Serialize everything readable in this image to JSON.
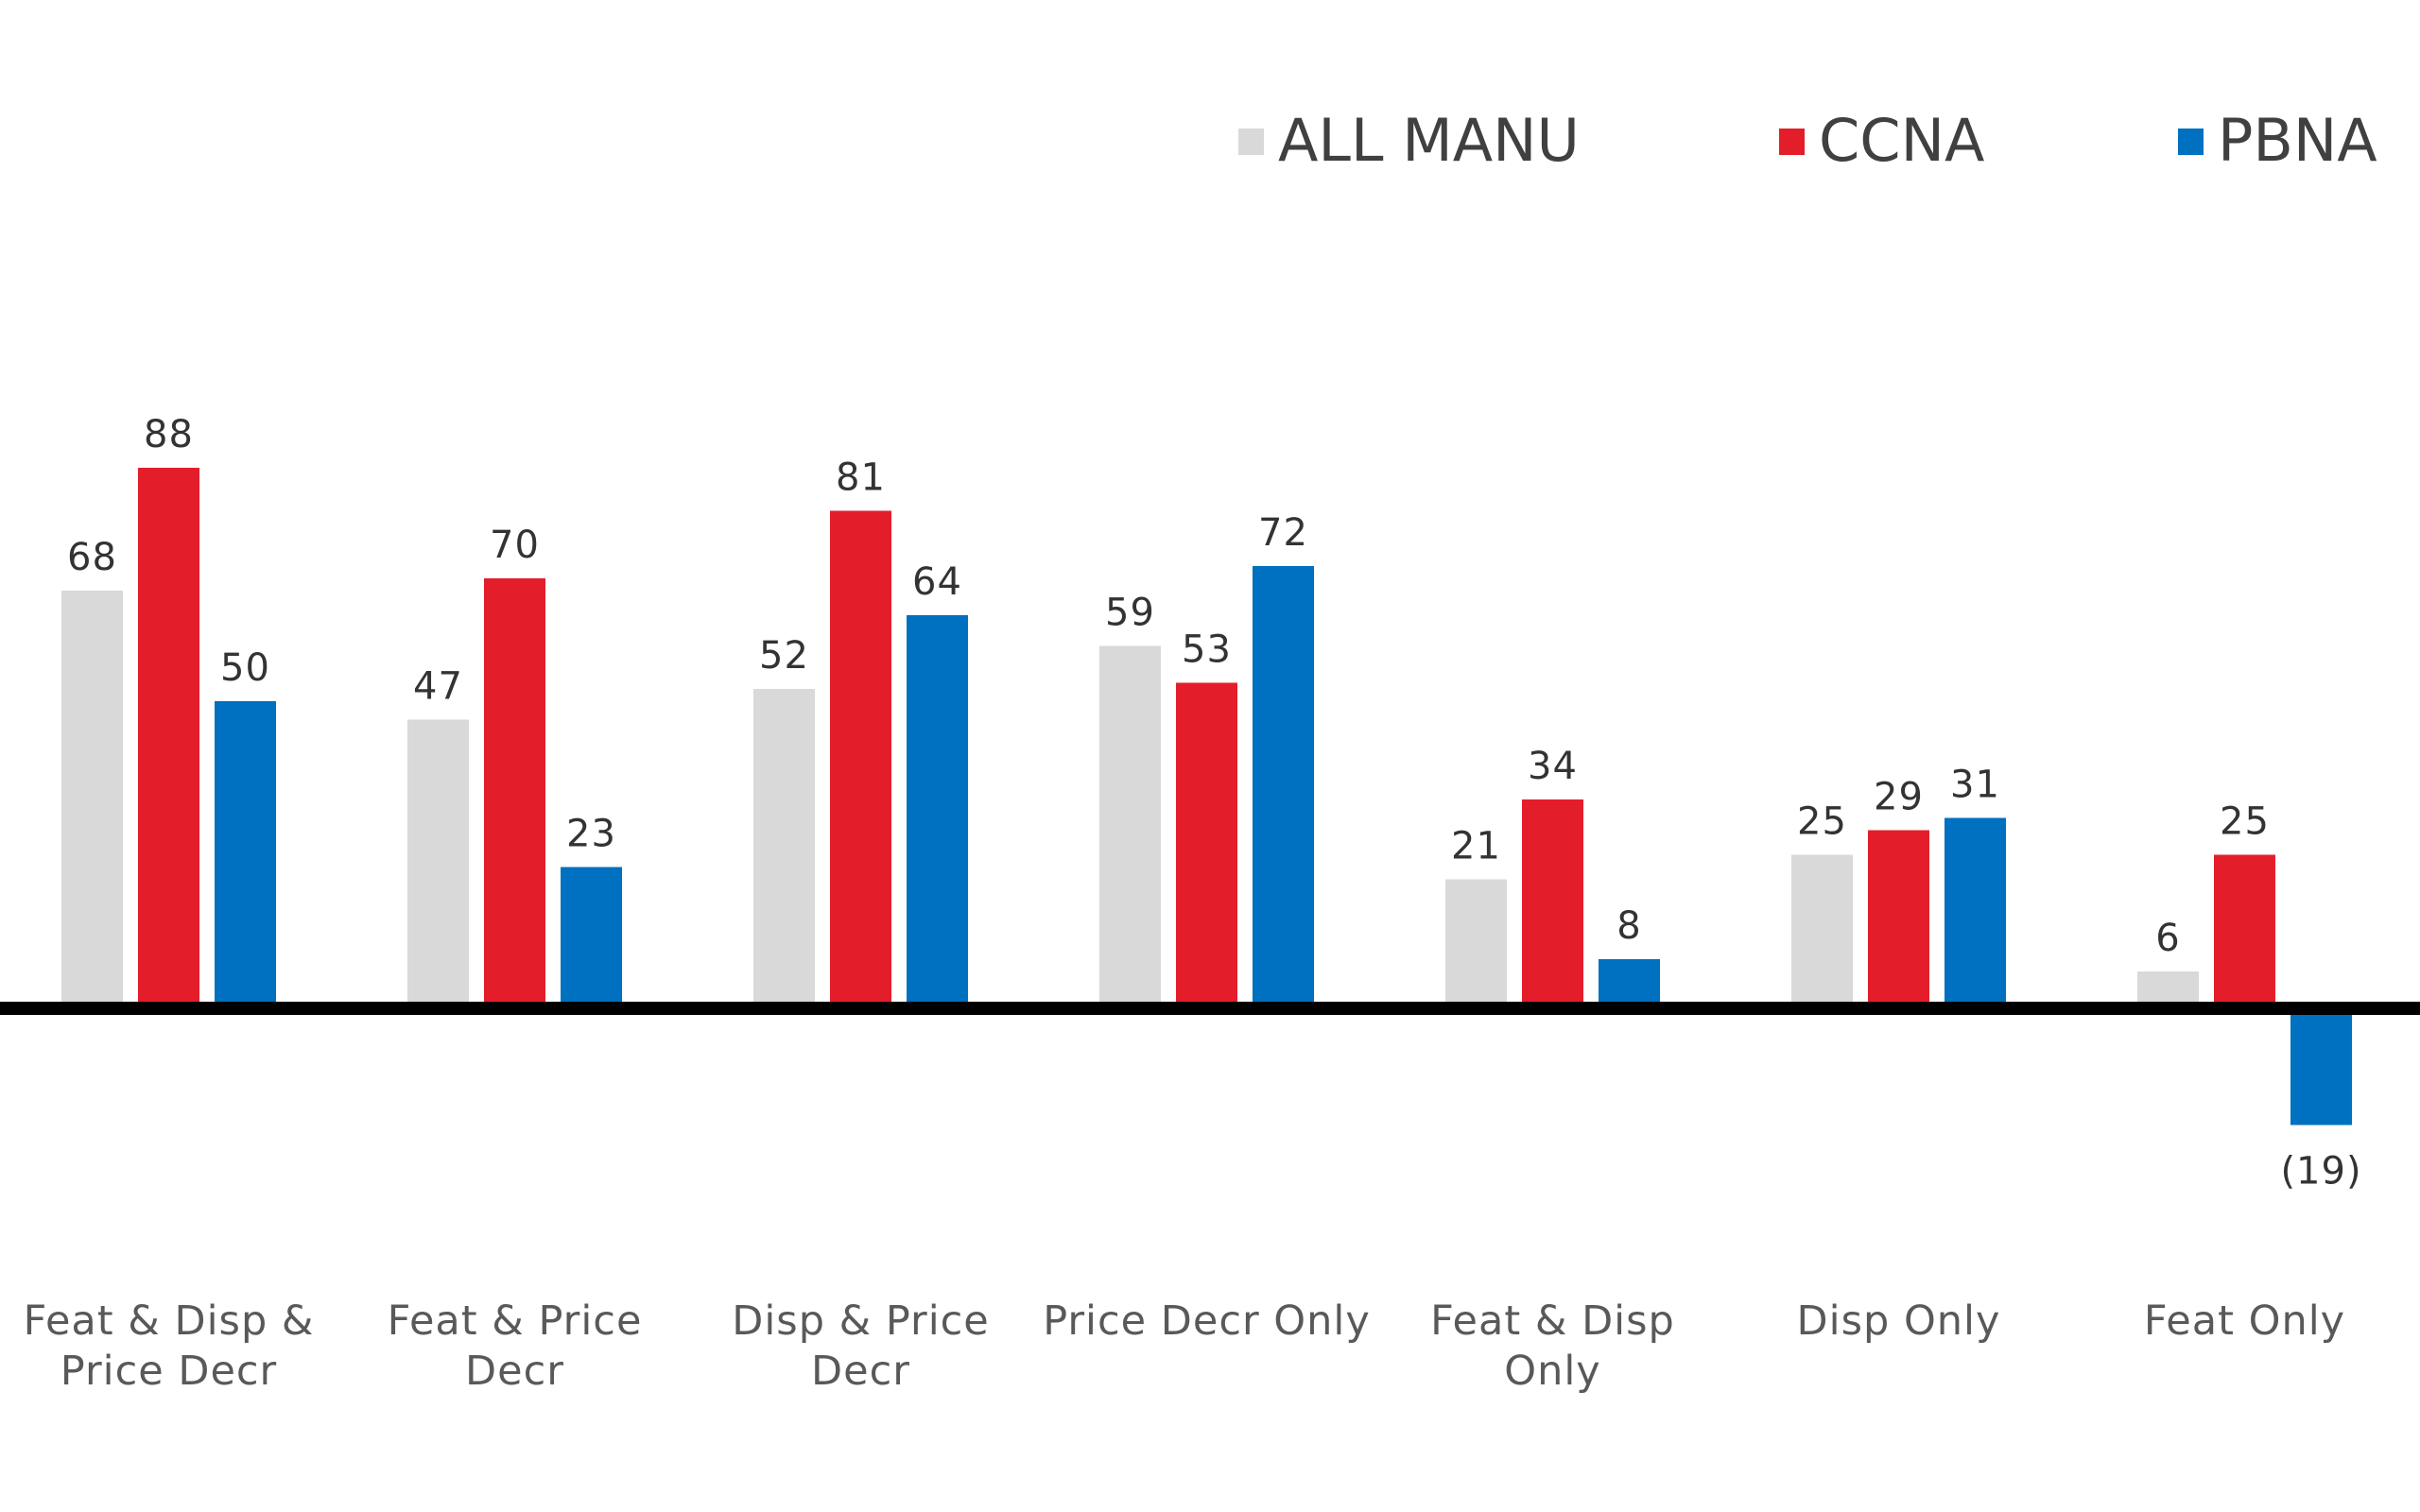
{
  "chart_data": {
    "type": "bar",
    "title": "",
    "xlabel": "",
    "ylabel": "",
    "ylim": [
      -19,
      88
    ],
    "grid": false,
    "legend_position": "top-right",
    "categories": [
      [
        "Feat & Disp &",
        "Price Decr"
      ],
      [
        "Feat & Price",
        "Decr"
      ],
      [
        "Disp & Price",
        "Decr"
      ],
      [
        "Price Decr Only"
      ],
      [
        "Feat & Disp",
        "Only"
      ],
      [
        "Disp Only"
      ],
      [
        "Feat Only"
      ]
    ],
    "series": [
      {
        "name": "ALL MANU",
        "color": "#d9d9d9",
        "values": [
          68,
          47,
          52,
          59,
          21,
          25,
          6
        ],
        "labels": [
          "68",
          "47",
          "52",
          "59",
          "21",
          "25",
          "6"
        ]
      },
      {
        "name": "CCNA",
        "color": "#e31e2a",
        "values": [
          88,
          70,
          81,
          53,
          34,
          29,
          25
        ],
        "labels": [
          "88",
          "70",
          "81",
          "53",
          "34",
          "29",
          "25"
        ]
      },
      {
        "name": "PBNA",
        "color": "#0070c0",
        "values": [
          50,
          23,
          64,
          72,
          8,
          31,
          -19
        ],
        "labels": [
          "50",
          "23",
          "64",
          "72",
          "8",
          "31",
          "(19)"
        ]
      }
    ]
  }
}
